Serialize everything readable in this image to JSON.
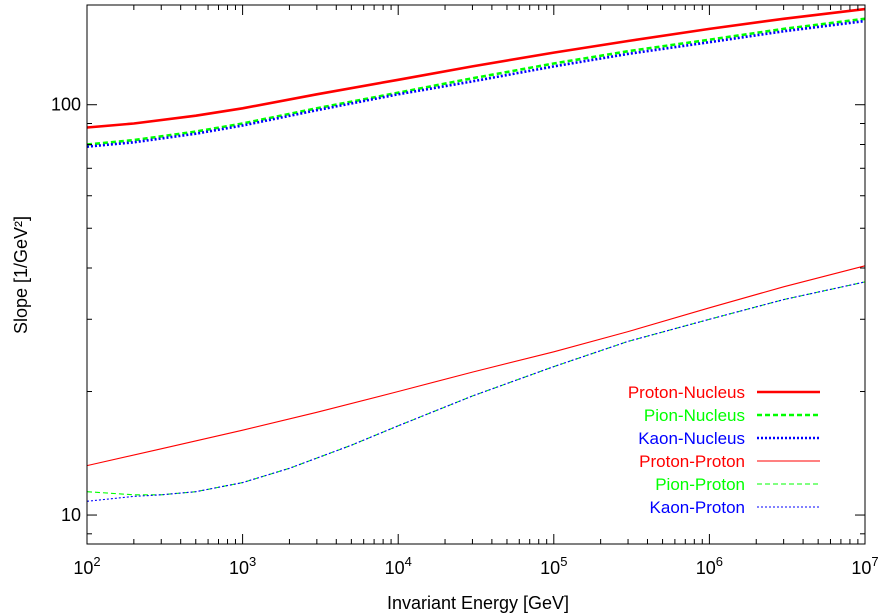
{
  "chart_data": {
    "type": "line",
    "xlabel": "Invariant Energy [GeV]",
    "ylabel": "Slope [1/GeV²]",
    "x_scale": "log",
    "y_scale": "log",
    "xlim": [
      100,
      10000000
    ],
    "ylim": [
      8.5,
      175
    ],
    "x_ticks": [
      {
        "value": 100,
        "base": "10",
        "exp": "2"
      },
      {
        "value": 1000,
        "base": "10",
        "exp": "3"
      },
      {
        "value": 10000,
        "base": "10",
        "exp": "4"
      },
      {
        "value": 100000,
        "base": "10",
        "exp": "5"
      },
      {
        "value": 1000000,
        "base": "10",
        "exp": "6"
      },
      {
        "value": 10000000,
        "base": "10",
        "exp": "7"
      }
    ],
    "y_ticks": [
      {
        "value": 10,
        "label": "10"
      },
      {
        "value": 100,
        "label": "100"
      }
    ],
    "grid": false,
    "legend_position": "bottom-right",
    "series": [
      {
        "name": "Proton-Nucleus",
        "color": "#ff0000",
        "style": "solid",
        "weight": "thick",
        "x": [
          100,
          200,
          500,
          1000,
          3000,
          10000,
          30000,
          100000,
          300000,
          1000000,
          3000000,
          10000000
        ],
        "y": [
          88,
          90,
          94,
          98,
          106,
          115,
          124,
          134,
          143,
          153,
          162,
          171
        ]
      },
      {
        "name": "Pion-Nucleus",
        "color": "#00ff00",
        "style": "dashed",
        "weight": "thick",
        "x": [
          100,
          200,
          500,
          1000,
          3000,
          10000,
          30000,
          100000,
          300000,
          1000000,
          3000000,
          10000000
        ],
        "y": [
          80,
          82,
          86,
          90,
          98,
          107,
          116,
          126,
          135,
          144,
          153,
          162
        ]
      },
      {
        "name": "Kaon-Nucleus",
        "color": "#0000ff",
        "style": "dotted",
        "weight": "thick",
        "x": [
          100,
          200,
          500,
          1000,
          3000,
          10000,
          30000,
          100000,
          300000,
          1000000,
          3000000,
          10000000
        ],
        "y": [
          79,
          81,
          85,
          89,
          97,
          106,
          114,
          124,
          133,
          142,
          151,
          160
        ]
      },
      {
        "name": "Proton-Proton",
        "color": "#ff0000",
        "style": "solid",
        "weight": "thin",
        "x": [
          100,
          300,
          1000,
          3000,
          10000,
          30000,
          100000,
          300000,
          1000000,
          3000000,
          10000000
        ],
        "y": [
          13.2,
          14.5,
          16.1,
          17.8,
          20.0,
          22.3,
          25.0,
          28.0,
          32.0,
          36.0,
          40.5
        ]
      },
      {
        "name": "Pion-Proton",
        "color": "#00ff00",
        "style": "dashed",
        "weight": "thin",
        "x": [
          100,
          200,
          300,
          500,
          1000,
          2000,
          5000,
          10000,
          30000,
          100000,
          300000,
          1000000,
          3000000,
          10000000
        ],
        "y": [
          11.4,
          11.2,
          11.2,
          11.4,
          12.0,
          13.0,
          14.8,
          16.5,
          19.5,
          23.0,
          26.5,
          30.0,
          33.5,
          37.0
        ]
      },
      {
        "name": "Kaon-Proton",
        "color": "#0000ff",
        "style": "dotted",
        "weight": "thin",
        "x": [
          100,
          200,
          300,
          500,
          1000,
          2000,
          5000,
          10000,
          30000,
          100000,
          300000,
          1000000,
          3000000,
          10000000
        ],
        "y": [
          10.8,
          11.1,
          11.2,
          11.4,
          12.0,
          13.0,
          14.8,
          16.5,
          19.5,
          23.0,
          26.5,
          30.0,
          33.5,
          37.0
        ]
      }
    ]
  }
}
